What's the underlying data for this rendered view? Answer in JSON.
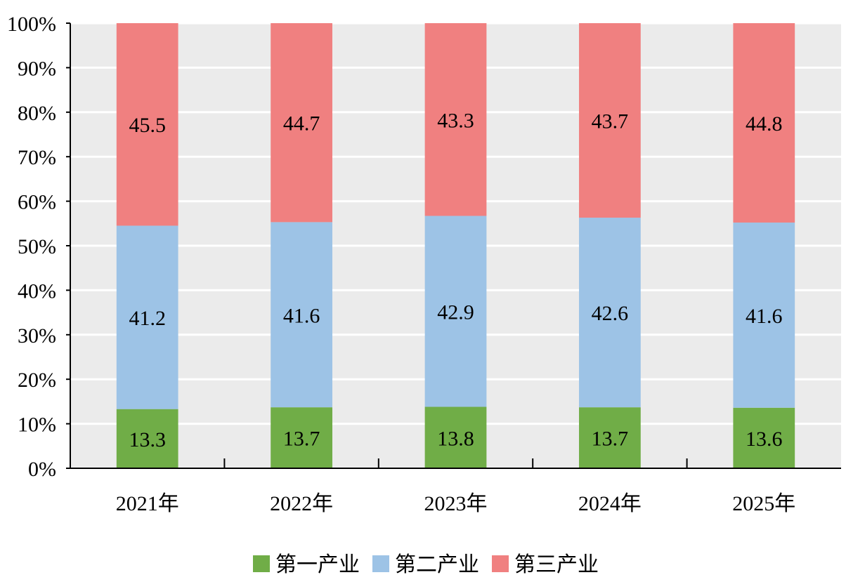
{
  "chart_data": {
    "type": "bar",
    "stacked": true,
    "percent_stacked": true,
    "categories": [
      "2021年",
      "2022年",
      "2023年",
      "2024年",
      "2025年"
    ],
    "series": [
      {
        "name": "第一产业",
        "color": "#70ad47",
        "values": [
          13.3,
          13.7,
          13.8,
          13.7,
          13.6
        ]
      },
      {
        "name": "第二产业",
        "color": "#9dc3e6",
        "values": [
          41.2,
          41.6,
          42.9,
          42.6,
          41.6
        ]
      },
      {
        "name": "第三产业",
        "color": "#f08080",
        "values": [
          45.5,
          44.7,
          43.3,
          43.7,
          44.8
        ]
      }
    ],
    "ylim": [
      0,
      100
    ],
    "yticks": [
      "0%",
      "10%",
      "20%",
      "30%",
      "40%",
      "50%",
      "60%",
      "70%",
      "80%",
      "90%",
      "100%"
    ],
    "grid": true,
    "background": "#ebebeb",
    "legend_position": "bottom"
  }
}
